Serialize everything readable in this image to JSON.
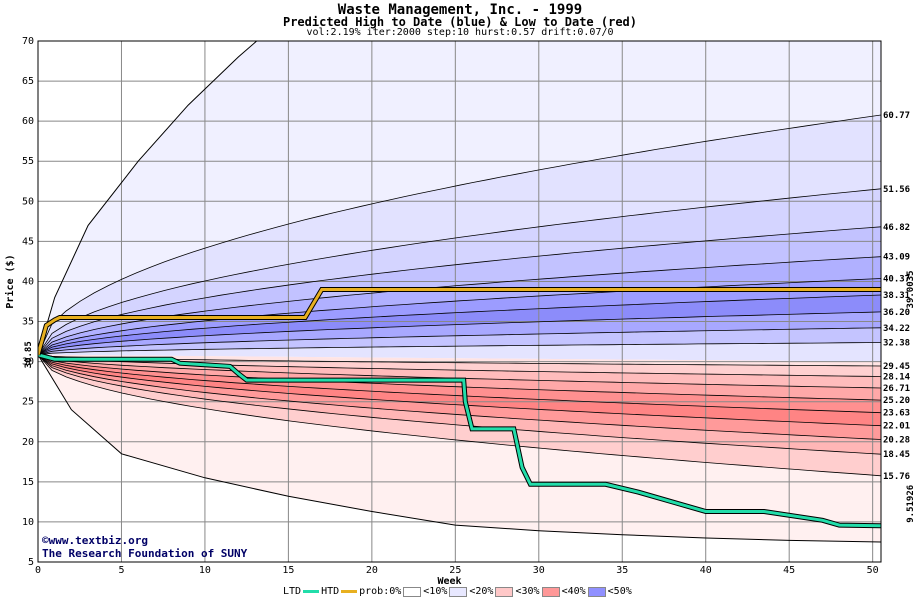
{
  "chart_data": {
    "type": "area",
    "title": "Waste Management, Inc. - 1999",
    "subtitle": "Predicted High to Date (blue) &  Low to Date (red)",
    "params": "vol:2.19% iter:2000 step:10 hurst:0.57 drift:0.07/0",
    "xlabel": "Week",
    "ylabel": "Price ($)",
    "xlim": [
      0,
      50.5
    ],
    "ylim": [
      5,
      70
    ],
    "x_ticks": [
      0,
      5,
      10,
      15,
      20,
      25,
      30,
      35,
      40,
      45,
      50
    ],
    "y_ticks": [
      5,
      10,
      15,
      20,
      25,
      30,
      35,
      40,
      45,
      50,
      55,
      60,
      65,
      70
    ],
    "grid": true,
    "start_price": 30.85,
    "start_label": "30.85",
    "high_levels": [
      "60.77",
      "51.56",
      "46.82",
      "43.09",
      "40.37",
      "38.31",
      "36.20",
      "34.22",
      "32.38"
    ],
    "high_values": [
      60.77,
      51.56,
      46.82,
      43.09,
      40.37,
      38.31,
      36.2,
      34.22,
      32.38
    ],
    "low_levels": [
      "29.45",
      "28.14",
      "26.71",
      "25.20",
      "23.63",
      "22.01",
      "20.28",
      "18.45",
      "15.76"
    ],
    "low_values": [
      29.45,
      28.14,
      26.71,
      25.2,
      23.63,
      22.01,
      20.28,
      18.45,
      15.76
    ],
    "htd_final_label": "39.0035",
    "ltd_final_label": "9.51926",
    "htd_series": {
      "x": [
        0,
        0.5,
        1,
        1.3,
        16,
        17,
        50.5
      ],
      "y": [
        30.85,
        34.5,
        35.2,
        35.5,
        35.5,
        39.0,
        39.0
      ]
    },
    "ltd_series": {
      "x": [
        0,
        1,
        8,
        8.5,
        11.5,
        12,
        12.5,
        25.5,
        25.6,
        26,
        28.5,
        29,
        29.5,
        34,
        36,
        38,
        40,
        43.5,
        47,
        48,
        50.5
      ],
      "y": [
        30.85,
        30.3,
        30.3,
        29.8,
        29.4,
        28.5,
        27.7,
        27.7,
        25,
        21.6,
        21.6,
        16.8,
        14.7,
        14.7,
        13.7,
        12.5,
        11.3,
        11.3,
        10.2,
        9.6,
        9.52
      ]
    },
    "outer_high": {
      "x": [
        0,
        1,
        3,
        6,
        9,
        12,
        13.1
      ],
      "y": [
        30.85,
        38,
        47,
        55,
        62,
        68,
        70
      ]
    },
    "outer_low": {
      "x": [
        0,
        2,
        5,
        10,
        15,
        20,
        25,
        30,
        35,
        40,
        45,
        50.5
      ],
      "y": [
        30.85,
        24,
        18.5,
        15.5,
        13.2,
        11.3,
        9.6,
        8.9,
        8.4,
        8.0,
        7.7,
        7.5
      ]
    },
    "legend": [
      {
        "label": "LTD",
        "color": "#22ddaa"
      },
      {
        "label": "HTD",
        "color": "#e8b020"
      },
      {
        "label": "prob:0%",
        "color": "#ffffff"
      },
      {
        "label": "<10%",
        "color": "#f0f0ff"
      },
      {
        "label": "<20%",
        "color": "#d8d8ff"
      },
      {
        "label": "<30%",
        "color": "#ffc0c0"
      },
      {
        "label": "<40%",
        "color": "#ff9090"
      },
      {
        "label": "<50%",
        "color": "#8080ff"
      }
    ]
  },
  "watermark": {
    "line1": "www.textbiz.org",
    "line2": "The Research Foundation of SUNY",
    "copyright": "©"
  }
}
